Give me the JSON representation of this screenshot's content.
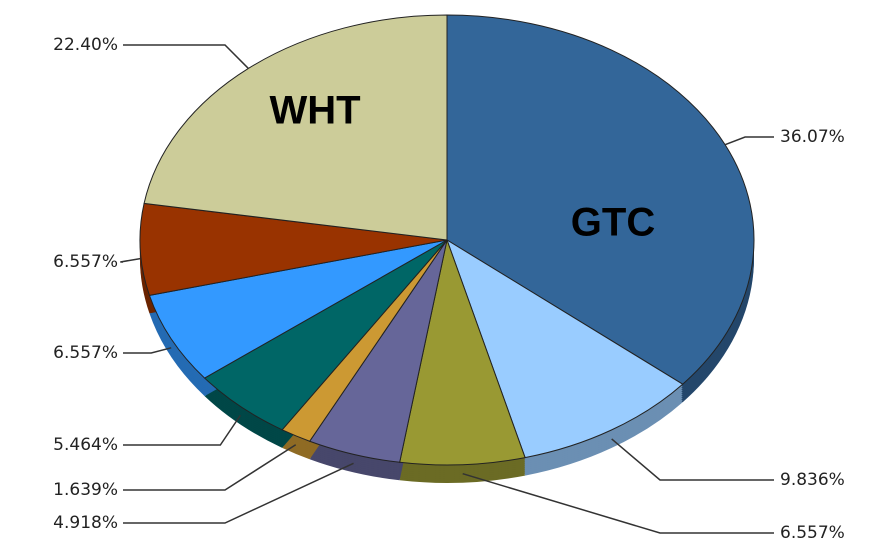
{
  "chart_data": {
    "type": "pie",
    "categories": [
      "GTC",
      null,
      null,
      null,
      null,
      null,
      null,
      null,
      "WHT"
    ],
    "values": [
      36.07,
      9.836,
      6.557,
      4.918,
      1.639,
      5.464,
      6.557,
      6.557,
      22.4
    ],
    "value_labels": [
      "36.07%",
      "9.836%",
      "6.557%",
      "4.918%",
      "1.639%",
      "5.464%",
      "6.557%",
      "6.557%",
      "22.40%"
    ],
    "colors": [
      "#336699",
      "#99ccff",
      "#999933",
      "#666699",
      "#cc9933",
      "#006666",
      "#3399ff",
      "#993300",
      "#cccc99"
    ]
  }
}
